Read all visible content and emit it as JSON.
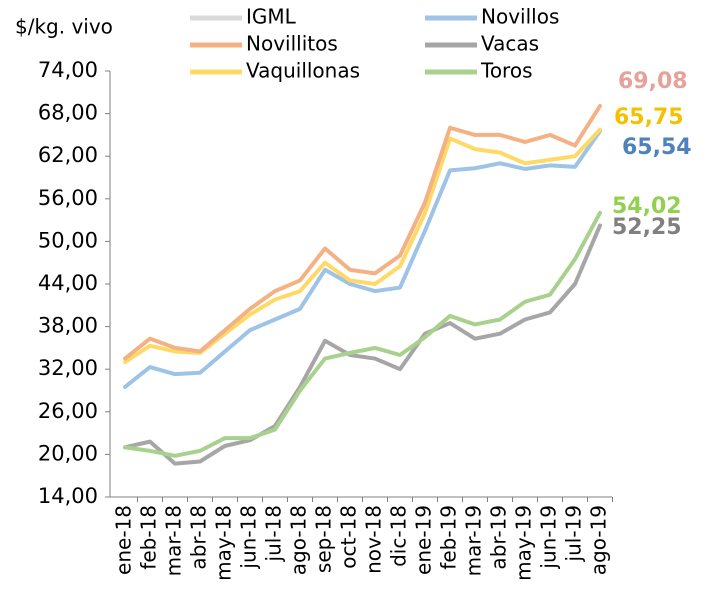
{
  "chart_data": {
    "type": "line",
    "y_label": "$/kg. vivo",
    "categories": [
      "ene-18",
      "feb-18",
      "mar-18",
      "abr-18",
      "may-18",
      "jun-18",
      "jul-18",
      "ago-18",
      "sep-18",
      "oct-18",
      "nov-18",
      "dic-18",
      "ene-19",
      "feb-19",
      "mar-19",
      "abr-19",
      "may-19",
      "jun-19",
      "jul-19",
      "ago-19"
    ],
    "ylim": [
      14,
      74
    ],
    "yticks": [
      {
        "value": 14,
        "label": "14,00"
      },
      {
        "value": 20,
        "label": "20,00"
      },
      {
        "value": 26,
        "label": "26,00"
      },
      {
        "value": 32,
        "label": "32,00"
      },
      {
        "value": 38,
        "label": "38,00"
      },
      {
        "value": 44,
        "label": "44,00"
      },
      {
        "value": 50,
        "label": "50,00"
      },
      {
        "value": 56,
        "label": "56,00"
      },
      {
        "value": 62,
        "label": "62,00"
      },
      {
        "value": 68,
        "label": "68,00"
      },
      {
        "value": 74,
        "label": "74,00"
      }
    ],
    "series": [
      {
        "name": "IGML",
        "color": "#d9d9d9",
        "values": [
          null,
          null,
          null,
          null,
          null,
          null,
          null,
          null,
          null,
          null,
          null,
          null,
          null,
          null,
          null,
          null,
          null,
          null,
          null,
          null
        ]
      },
      {
        "name": "Novillos",
        "color": "#9dc3e6",
        "label_color": "#4f81bd",
        "values": [
          29.5,
          32.3,
          31.3,
          31.5,
          34.5,
          37.5,
          39,
          40.5,
          46,
          44,
          43,
          43.5,
          51.5,
          60,
          60.3,
          61,
          60.2,
          60.7,
          60.5,
          65.54
        ],
        "value_labels": {
          "19": "65,54"
        }
      },
      {
        "name": "Novillitos",
        "color": "#f4b183",
        "label_color": "#e6a19b",
        "values": [
          33.5,
          36.3,
          35,
          34.5,
          37.5,
          40.5,
          43,
          44.5,
          49,
          46,
          45.5,
          48,
          55.5,
          66,
          65,
          65,
          64,
          65,
          63.5,
          69.08
        ],
        "value_labels": {
          "19": "69,08"
        }
      },
      {
        "name": "Vacas",
        "color": "#a6a6a6",
        "label_color": "#808080",
        "values": [
          21,
          21.8,
          18.7,
          19,
          21.2,
          22,
          24,
          29.5,
          36,
          34,
          33.5,
          32,
          37,
          38.5,
          36.3,
          37,
          39,
          40,
          44,
          52.25
        ],
        "value_labels": {
          "19": "52,25"
        }
      },
      {
        "name": "Vaquillonas",
        "color": "#ffd966",
        "label_color": "#f5c000",
        "values": [
          33,
          35.3,
          34.5,
          34.3,
          37,
          39.7,
          41.8,
          43,
          47,
          44.5,
          44,
          46.5,
          54,
          64.5,
          63,
          62.5,
          61,
          61.5,
          62,
          65.75
        ],
        "value_labels": {
          "19": "65,75"
        }
      },
      {
        "name": "Toros",
        "color": "#a9d18e",
        "label_color": "#92d050",
        "values": [
          21,
          20.5,
          19.8,
          20.5,
          22.3,
          22.3,
          23.5,
          29,
          33.5,
          34.3,
          35,
          34,
          36.5,
          39.5,
          38.3,
          39,
          41.5,
          42.5,
          47.5,
          54.02
        ],
        "value_labels": {
          "19": "54,02"
        }
      }
    ]
  }
}
